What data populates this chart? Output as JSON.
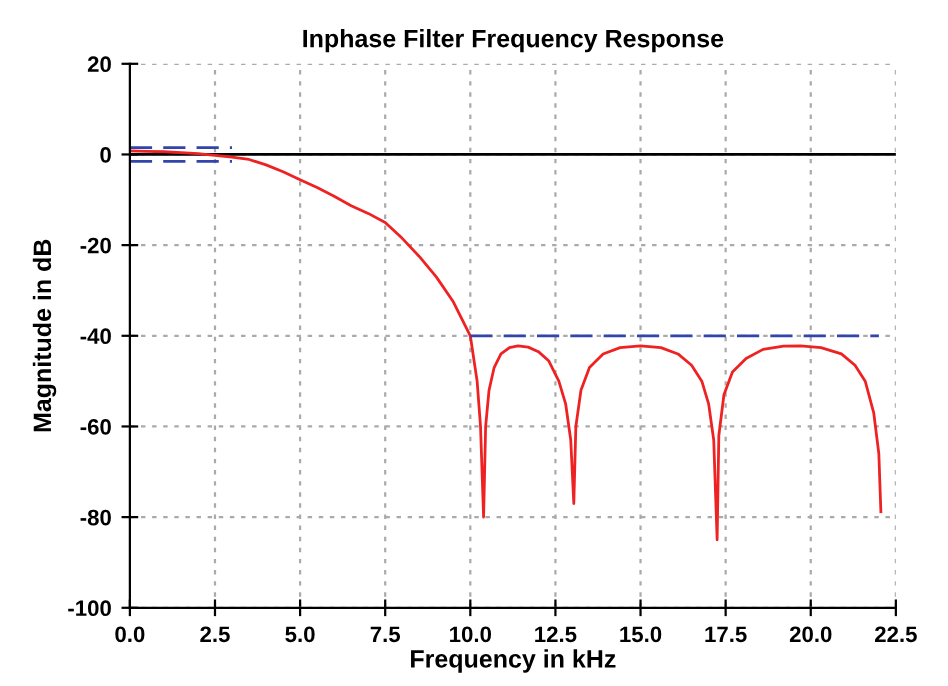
{
  "chart_data": {
    "type": "line",
    "title": "Inphase Filter Frequency Response",
    "xlabel": "Frequency in kHz",
    "ylabel": "Magnitude in dB",
    "xlim": [
      0,
      22.5
    ],
    "ylim": [
      -100,
      20
    ],
    "xticks": [
      {
        "value": 0,
        "label": "0.0"
      },
      {
        "value": 2.5,
        "label": "2.5"
      },
      {
        "value": 5,
        "label": "5.0"
      },
      {
        "value": 7.5,
        "label": "7.5"
      },
      {
        "value": 10,
        "label": "10.0"
      },
      {
        "value": 12.5,
        "label": "12.5"
      },
      {
        "value": 15,
        "label": "15.0"
      },
      {
        "value": 17.5,
        "label": "17.5"
      },
      {
        "value": 20,
        "label": "20.0"
      },
      {
        "value": 22.5,
        "label": "22.5"
      }
    ],
    "yticks": [
      -100,
      -80,
      -60,
      -40,
      -20,
      0,
      20
    ],
    "grid": true,
    "legend": false,
    "ref_lines": [
      {
        "axis": "y",
        "value": 0,
        "color": "#000000",
        "line_style": "solid"
      }
    ],
    "series": [
      {
        "color": "#ee2222",
        "line_style": "solid",
        "x": [
          0,
          0.5,
          1.0,
          1.5,
          2.0,
          2.5,
          3.0,
          3.5,
          4.0,
          4.5,
          5.0,
          5.5,
          6.0,
          6.5,
          7.0,
          7.5,
          8.0,
          8.5,
          9.0,
          9.5,
          10.0,
          10.2,
          10.3,
          10.39,
          10.45,
          10.55,
          10.7,
          10.9,
          11.15,
          11.4,
          11.7,
          12.0,
          12.3,
          12.6,
          12.8,
          12.95,
          13.04,
          13.1,
          13.25,
          13.5,
          13.9,
          14.4,
          15.0,
          15.6,
          16.1,
          16.5,
          16.8,
          17.0,
          17.15,
          17.25,
          17.3,
          17.45,
          17.7,
          18.1,
          18.6,
          19.2,
          19.7,
          20.3,
          20.9,
          21.3,
          21.6,
          21.85,
          22.0,
          22.06
        ],
        "values": [
          0.8,
          0.7,
          0.6,
          0.4,
          0.2,
          -0.2,
          -0.6,
          -1.1,
          -2.3,
          -3.8,
          -5.6,
          -7.3,
          -9.2,
          -11.3,
          -13,
          -15,
          -18.5,
          -22.5,
          -27,
          -32.5,
          -40,
          -50,
          -60,
          -80,
          -60,
          -52,
          -47,
          -44,
          -42.6,
          -42.2,
          -42.5,
          -43.5,
          -45.5,
          -50,
          -55,
          -63,
          -77,
          -60,
          -52,
          -47,
          -44,
          -42.6,
          -42.2,
          -42.6,
          -44,
          -46.5,
          -50,
          -55,
          -63,
          -85,
          -62,
          -53,
          -48,
          -45,
          -43,
          -42.3,
          -42.2,
          -42.6,
          -44,
          -46.5,
          -50,
          -57,
          -66,
          -78.8
        ]
      },
      {
        "color": "#3344aa",
        "line_style": "dashed",
        "x": [
          0,
          3
        ],
        "values": [
          1.5,
          1.5
        ]
      },
      {
        "color": "#3344aa",
        "line_style": "dashed",
        "x": [
          0,
          3
        ],
        "values": [
          -1.5,
          -1.5
        ]
      },
      {
        "color": "#3344aa",
        "line_style": "dashed",
        "x": [
          10,
          22
        ],
        "values": [
          -40,
          -40
        ]
      }
    ]
  }
}
